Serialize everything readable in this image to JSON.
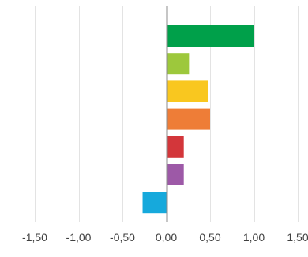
{
  "chart_data": {
    "type": "bar",
    "orientation": "horizontal",
    "title": "",
    "xlabel": "",
    "ylabel": "",
    "xlim": [
      -1.5,
      1.5
    ],
    "x_ticks": [
      -1.5,
      -1.0,
      -0.5,
      0.0,
      0.5,
      1.0,
      1.5
    ],
    "x_tick_labels": [
      "-1,50",
      "-1,00",
      "-0,50",
      "0,00",
      "0,50",
      "1,00",
      "1,50"
    ],
    "grid": "vertical",
    "legend": "none",
    "bars": [
      {
        "value": 1.0,
        "color": "#00a04a"
      },
      {
        "value": 0.26,
        "color": "#9dc83c"
      },
      {
        "value": 0.48,
        "color": "#f9c71f"
      },
      {
        "value": 0.5,
        "color": "#ee7d37"
      },
      {
        "value": 0.2,
        "color": "#d3363a"
      },
      {
        "value": 0.2,
        "color": "#9d59a7"
      },
      {
        "value": -0.27,
        "color": "#16a9dc"
      }
    ],
    "colors": {
      "gridline": "#e3e3e3",
      "zero_axis": "#8c8c8c",
      "tick_text": "#404040"
    }
  }
}
